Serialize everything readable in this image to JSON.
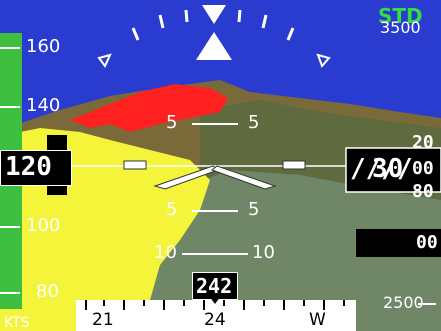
{
  "baro_setting": "STD",
  "airspeed": {
    "current_value": "120",
    "tape_labels": [
      "160",
      "140",
      "100",
      "80"
    ],
    "units": "KTS"
  },
  "altitude": {
    "current_value": "30",
    "hundreds_label": "////",
    "roll_digits": [
      "20",
      "00",
      "80"
    ],
    "tape_labels": [
      "3500",
      "2500"
    ],
    "vertical_speed": "00"
  },
  "pitch_ladder": {
    "labels": [
      "5",
      "5",
      "5",
      "5",
      "10",
      "10"
    ]
  },
  "heading": {
    "current_value": "242",
    "tape_labels": [
      "21",
      "24",
      "W"
    ]
  },
  "colors": {
    "sky": "#2a3bd0",
    "speed_tape": "#3fbf3f",
    "terrain_warning": "#ff2020",
    "terrain_caution": "#f4f43a",
    "std_text": "#33dd44"
  }
}
